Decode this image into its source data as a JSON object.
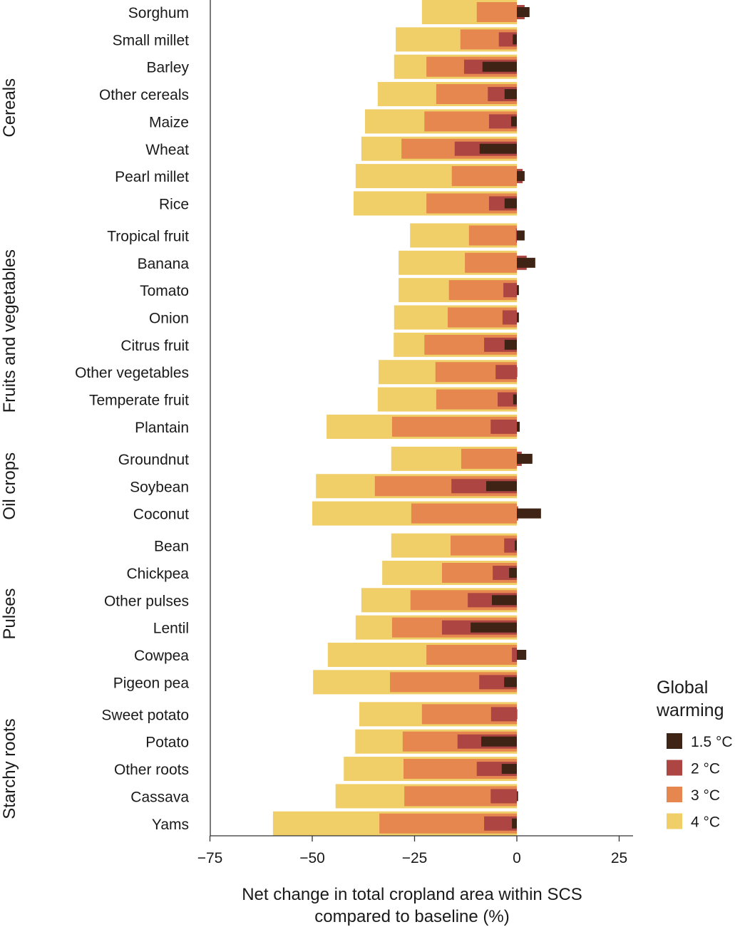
{
  "chart_data": {
    "type": "bar",
    "orientation": "horizontal",
    "xlabel": [
      "Net change in total cropland area within SCS",
      "compared to baseline (%)"
    ],
    "xlim": [
      -75,
      28
    ],
    "xticks": [
      -75,
      -50,
      -25,
      0,
      25
    ],
    "xtick_labels": [
      "−75",
      "−50",
      "−25",
      "0",
      "25"
    ],
    "grid": false,
    "legend": {
      "title": [
        "Global",
        "warming"
      ],
      "placement": "right",
      "entries": [
        "1.5 °C",
        "2 °C",
        "3 °C",
        "4 °C"
      ]
    },
    "series": [
      {
        "name": "4 °C",
        "color": "#F0CE68"
      },
      {
        "name": "3 °C",
        "color": "#E5874F"
      },
      {
        "name": "2 °C",
        "color": "#AD4642"
      },
      {
        "name": "1.5 °C",
        "color": "#3F2415"
      }
    ],
    "value_order": [
      "4 °C",
      "3 °C",
      "2 °C",
      "1.5 °C"
    ],
    "groups": [
      {
        "name": "Cereals",
        "crops": [
          {
            "name": "Sorghum",
            "values": [
              -23.2,
              -9.8,
              1.9,
              3.1
            ]
          },
          {
            "name": "Small millet",
            "values": [
              -29.6,
              -13.8,
              -4.4,
              -1.0
            ]
          },
          {
            "name": "Barley",
            "values": [
              -30.0,
              -22.1,
              -12.9,
              -8.4
            ]
          },
          {
            "name": "Other cereals",
            "values": [
              -34.0,
              -19.7,
              -7.1,
              -3.0
            ]
          },
          {
            "name": "Maize",
            "values": [
              -37.1,
              -22.6,
              -6.8,
              -1.4
            ]
          },
          {
            "name": "Wheat",
            "values": [
              -38.0,
              -28.2,
              -15.2,
              -9.1
            ]
          },
          {
            "name": "Pearl millet",
            "values": [
              -39.4,
              -15.9,
              1.4,
              1.9
            ]
          },
          {
            "name": "Rice",
            "values": [
              -39.9,
              -22.1,
              -6.8,
              -3.0
            ]
          }
        ]
      },
      {
        "name": "Fruits and vegetables",
        "crops": [
          {
            "name": "Tropical fruit",
            "values": [
              -26.1,
              -11.7,
              -0.2,
              1.9
            ]
          },
          {
            "name": "Banana",
            "values": [
              -28.9,
              -12.7,
              2.4,
              4.5
            ]
          },
          {
            "name": "Tomato",
            "values": [
              -28.9,
              -16.6,
              -3.3,
              0.5
            ]
          },
          {
            "name": "Onion",
            "values": [
              -30.0,
              -16.9,
              -3.5,
              0.5
            ]
          },
          {
            "name": "Citrus fruit",
            "values": [
              -30.1,
              -22.6,
              -8.0,
              -3.0
            ]
          },
          {
            "name": "Other vegetables",
            "values": [
              -33.8,
              -19.9,
              -5.2,
              0.0
            ]
          },
          {
            "name": "Temperate fruit",
            "values": [
              -34.0,
              -19.7,
              -4.7,
              -0.9
            ]
          },
          {
            "name": "Plantain",
            "values": [
              -46.5,
              -30.5,
              -6.4,
              0.7
            ]
          }
        ]
      },
      {
        "name": "Oil crops",
        "crops": [
          {
            "name": "Groundnut",
            "values": [
              -30.7,
              -13.6,
              1.2,
              3.8
            ]
          },
          {
            "name": "Soybean",
            "values": [
              -49.1,
              -34.7,
              -16.0,
              -7.5
            ]
          },
          {
            "name": "Coconut",
            "values": [
              -50.0,
              -25.8,
              0.3,
              5.9
            ]
          }
        ]
      },
      {
        "name": "Pulses",
        "crops": [
          {
            "name": "Bean",
            "values": [
              -30.7,
              -16.2,
              -3.1,
              -0.5
            ]
          },
          {
            "name": "Chickpea",
            "values": [
              -32.9,
              -18.3,
              -5.9,
              -1.9
            ]
          },
          {
            "name": "Other pulses",
            "values": [
              -38.0,
              -26.0,
              -12.0,
              -6.1
            ]
          },
          {
            "name": "Lentil",
            "values": [
              -39.4,
              -30.5,
              -18.3,
              -11.3
            ]
          },
          {
            "name": "Cowpea",
            "values": [
              -46.2,
              -22.1,
              -1.2,
              2.3
            ]
          },
          {
            "name": "Pigeon pea",
            "values": [
              -49.8,
              -31.0,
              -9.2,
              -3.1
            ]
          }
        ]
      },
      {
        "name": "Starchy roots",
        "crops": [
          {
            "name": "Sweet potato",
            "values": [
              -38.5,
              -23.2,
              -6.3,
              0.0
            ]
          },
          {
            "name": "Potato",
            "values": [
              -39.5,
              -27.9,
              -14.5,
              -8.7
            ]
          },
          {
            "name": "Other roots",
            "values": [
              -42.3,
              -27.7,
              -9.8,
              -3.7
            ]
          },
          {
            "name": "Cassava",
            "values": [
              -44.3,
              -27.5,
              -6.4,
              0.3
            ]
          },
          {
            "name": "Yams",
            "values": [
              -59.6,
              -33.6,
              -8.0,
              -1.2
            ]
          }
        ]
      }
    ]
  }
}
